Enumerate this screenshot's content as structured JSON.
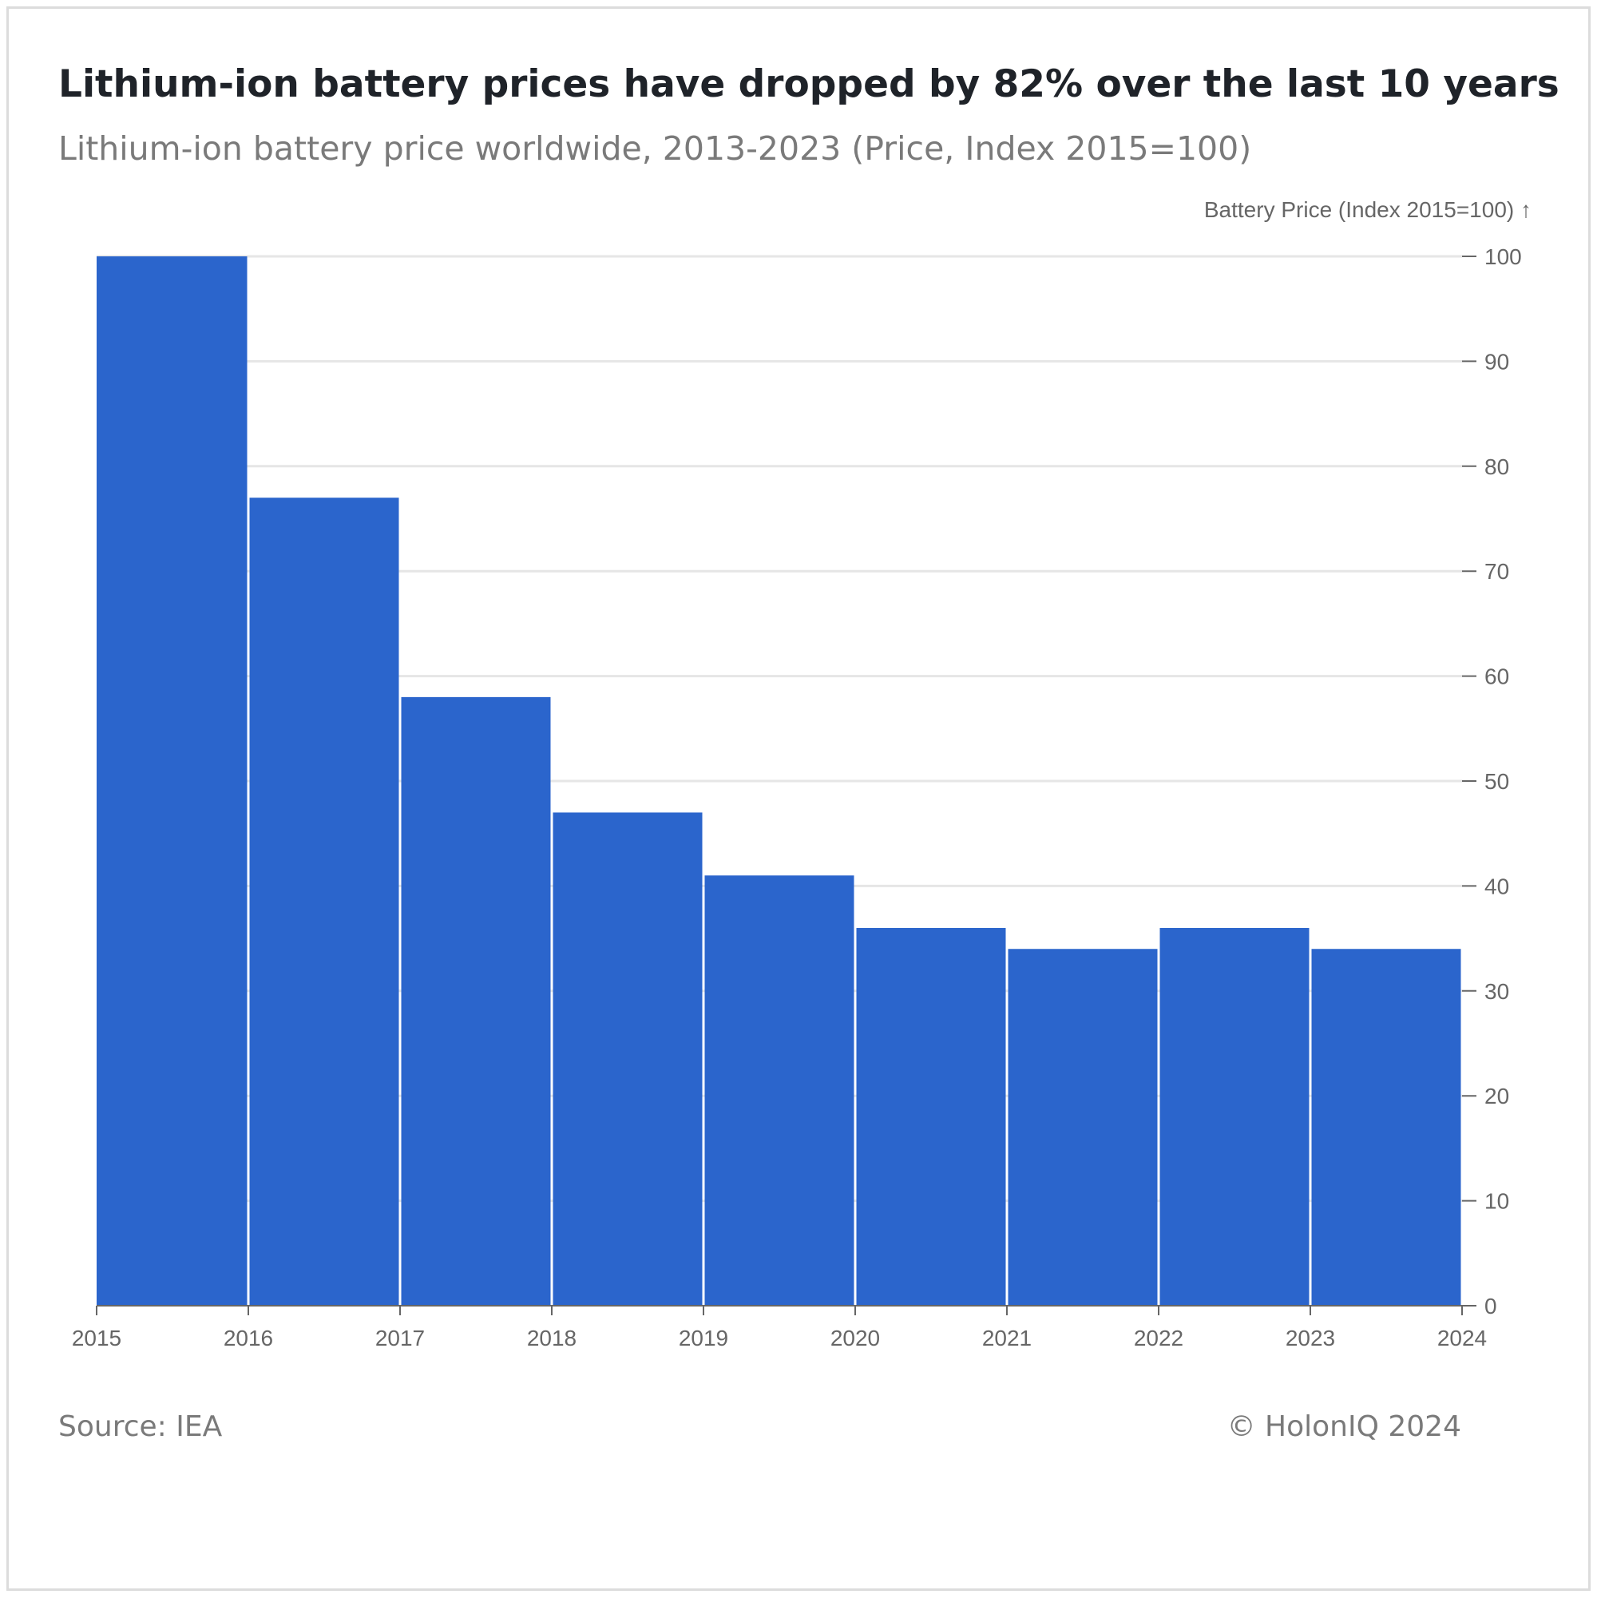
{
  "header": {
    "title": "Lithium-ion battery prices have dropped by 82% over the last 10 years",
    "subtitle": "Lithium-ion battery price worldwide, 2013-2023 (Price, Index 2015=100)"
  },
  "footer": {
    "source": "Source: IEA",
    "copyright": "© HolonIQ 2024"
  },
  "colors": {
    "bar": "#2b65cc",
    "grid": "#e6e6e6",
    "axis": "#666666"
  },
  "chart_data": {
    "type": "bar",
    "title": "Lithium-ion battery prices have dropped by 82% over the last 10 years",
    "subtitle": "Lithium-ion battery price worldwide, 2013-2023 (Price, Index 2015=100)",
    "xlabel": "",
    "ylabel": "Battery Price (Index 2015=100) ↑",
    "x_ticks": [
      "2015",
      "2016",
      "2017",
      "2018",
      "2019",
      "2020",
      "2021",
      "2022",
      "2023",
      "2024"
    ],
    "bins": [
      {
        "start": 2015,
        "end": 2016,
        "value": 100
      },
      {
        "start": 2016,
        "end": 2017,
        "value": 77
      },
      {
        "start": 2017,
        "end": 2018,
        "value": 58
      },
      {
        "start": 2018,
        "end": 2019,
        "value": 47
      },
      {
        "start": 2019,
        "end": 2020,
        "value": 41
      },
      {
        "start": 2020,
        "end": 2021,
        "value": 36
      },
      {
        "start": 2021,
        "end": 2022,
        "value": 34
      },
      {
        "start": 2022,
        "end": 2023,
        "value": 36
      },
      {
        "start": 2023,
        "end": 2024,
        "value": 34
      }
    ],
    "xlim": [
      2015,
      2024
    ],
    "ylim": [
      0,
      100
    ],
    "y_ticks": [
      0,
      10,
      20,
      30,
      40,
      50,
      60,
      70,
      80,
      90,
      100
    ],
    "y_axis_position": "right",
    "grid": true,
    "legend": "none"
  }
}
